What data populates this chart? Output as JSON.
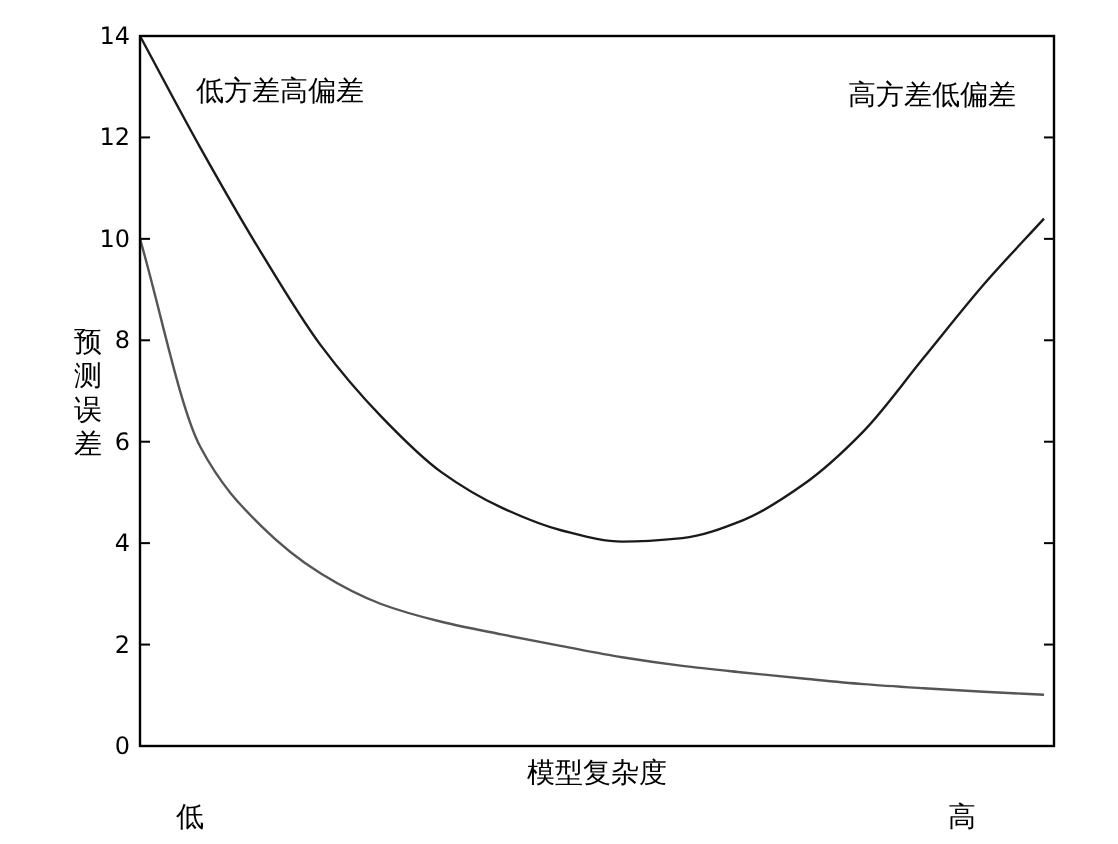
{
  "chart_data": {
    "type": "line",
    "xlabel": "模型复杂度",
    "ylabel": "预测误差",
    "categories": [
      null,
      null,
      null,
      null,
      null,
      null,
      null,
      null,
      null,
      null,
      null,
      null,
      null,
      null,
      null,
      null
    ],
    "series": [
      {
        "color": "#1a1a1a",
        "values": [
          14,
          11.8,
          9.75,
          7.9,
          6.5,
          5.4,
          4.7,
          4.25,
          4.03,
          4.1,
          4.45,
          5.15,
          6.2,
          7.65,
          9.1,
          10.4
        ]
      },
      {
        "color": "#555555",
        "values": [
          10,
          5.9,
          4.35,
          3.4,
          2.8,
          2.45,
          2.2,
          1.97,
          1.75,
          1.58,
          1.45,
          1.33,
          1.22,
          1.14,
          1.07,
          1.01
        ]
      }
    ],
    "ylim": [
      0,
      14
    ],
    "yticks": [
      0,
      2,
      4,
      6,
      8,
      10,
      12,
      14
    ],
    "grid": false,
    "marker": "none",
    "line_style": "solid",
    "annotations": [
      "低方差高偏差",
      "高方差低偏差",
      "低",
      "高"
    ]
  }
}
